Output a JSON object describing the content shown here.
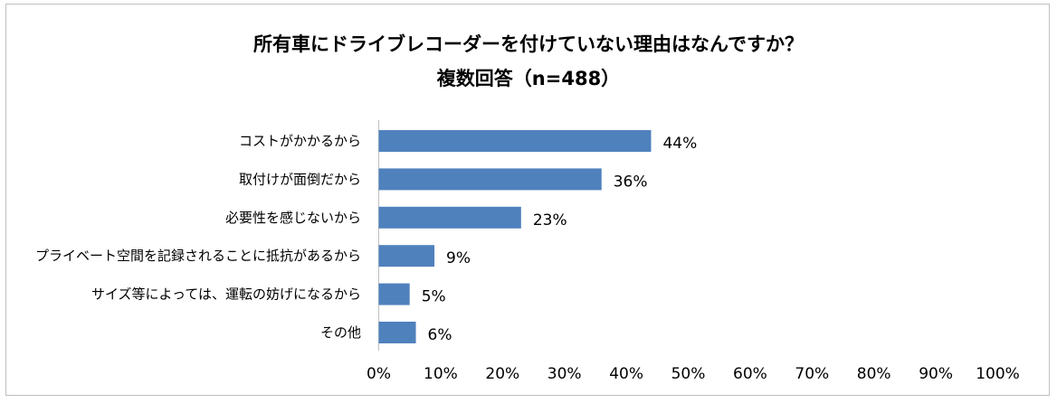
{
  "chart_data": {
    "type": "bar",
    "orientation": "horizontal",
    "title": "所有車にドライブレコーダーを付けていない理由はなんですか？",
    "subtitle": "複数回答（n=488）",
    "categories": [
      "コストがかかるから",
      "取付けが面倒だから",
      "必要性を感じないから",
      "プライベート空間を記録されることに抵抗があるから",
      "サイズ等によっては、運転の妨げになるから",
      "その他"
    ],
    "values": [
      44,
      36,
      23,
      9,
      5,
      6
    ],
    "data_labels": [
      "44%",
      "36%",
      "23%",
      "9%",
      "5%",
      "6%"
    ],
    "xlim": [
      0,
      100
    ],
    "x_ticks": [
      0,
      10,
      20,
      30,
      40,
      50,
      60,
      70,
      80,
      90,
      100
    ],
    "x_tick_labels": [
      "0%",
      "10%",
      "20%",
      "30%",
      "40%",
      "50%",
      "60%",
      "70%",
      "80%",
      "90%",
      "100%"
    ],
    "xlabel": "",
    "ylabel": "",
    "grid": false,
    "legend": "none",
    "bar_color": "#4f81bd"
  }
}
